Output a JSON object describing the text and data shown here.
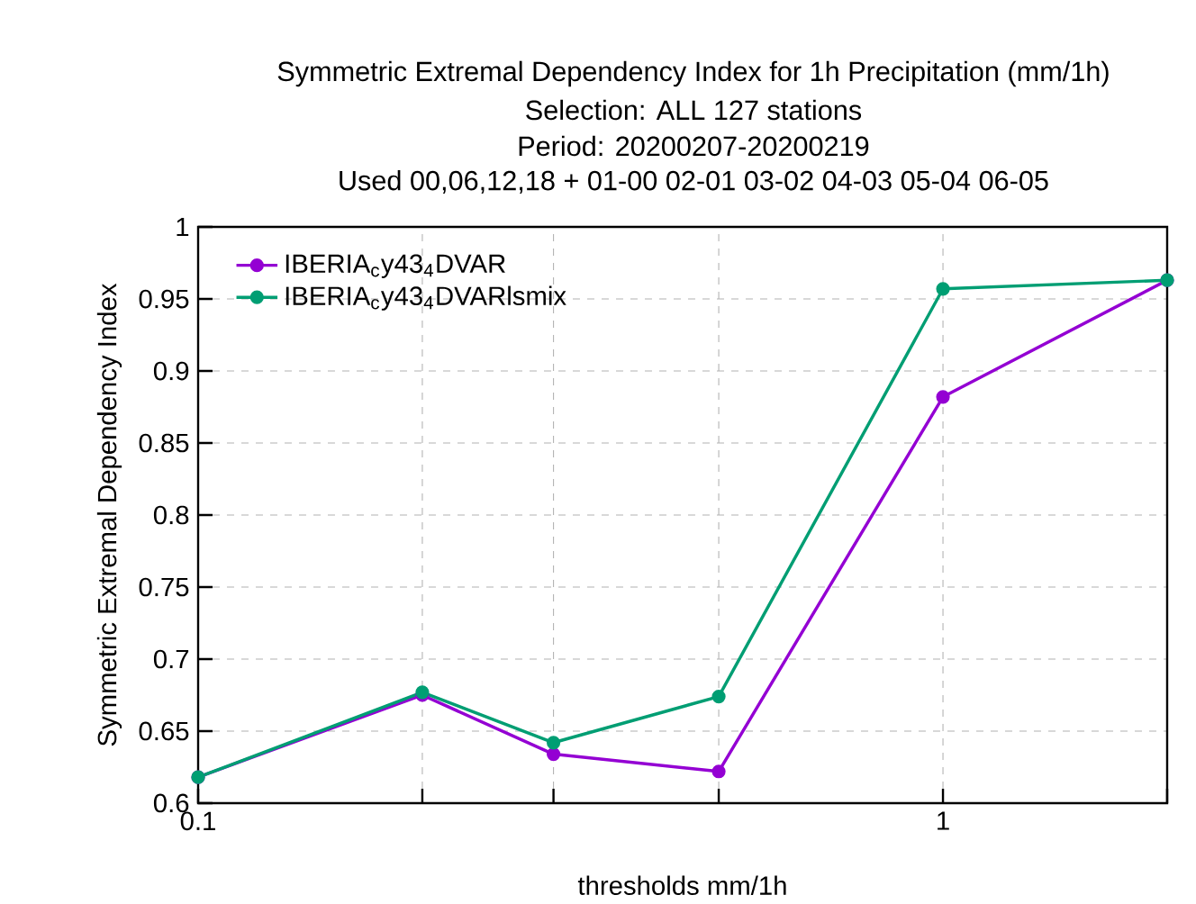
{
  "chart_data": {
    "type": "line",
    "title": "Symmetric Extremal Dependency Index  for 1h Precipitation (mm/1h)",
    "subtitle": "Selection: ALL     127 stations",
    "annotations": [
      "Period: 20200207-20200219",
      "Used  00,06,12,18 + 01-00 02-01 03-02 04-03 05-04 06-05"
    ],
    "xlabel": "thresholds mm/1h",
    "ylabel": "Symmetric Extremal Dependency Index",
    "x": [
      0.1,
      0.2,
      0.3,
      0.5,
      1,
      2
    ],
    "series": [
      {
        "name": "IBERIA$_{c}$y43$_{4}$DVAR",
        "color": "#9400d3",
        "values": [
          0.618,
          0.675,
          0.634,
          0.622,
          0.882,
          0.963
        ]
      },
      {
        "name": "IBERIA$_{c}$y43$_{4}$DVARlsmix",
        "color": "#009e73",
        "values": [
          0.618,
          0.677,
          0.642,
          0.674,
          0.957,
          0.963
        ]
      }
    ],
    "log": "x",
    "xlim": [
      0.1,
      2
    ],
    "ylim": [
      0.6,
      1
    ],
    "xticks": [
      0.1,
      {
        "value": 0.2,
        "label": null
      },
      {
        "value": 0.3,
        "label": null
      },
      {
        "value": 0.5,
        "label": null
      },
      1,
      {
        "value": 2,
        "label": null
      }
    ],
    "yticks": [
      0.6,
      0.65,
      0.7,
      0.75,
      0.8,
      0.85,
      0.9,
      0.95,
      1
    ],
    "grid": true,
    "legend": "top left",
    "marker": "circle",
    "line_style": "solid"
  }
}
